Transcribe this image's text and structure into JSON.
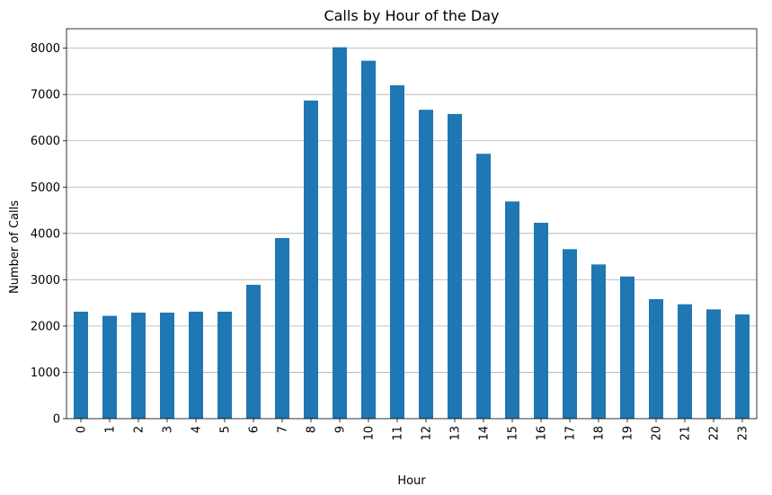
{
  "chart_data": {
    "type": "bar",
    "title": "Calls by Hour of the Day",
    "xlabel": "Hour",
    "ylabel": "Number of Calls",
    "categories": [
      "0",
      "1",
      "2",
      "3",
      "4",
      "5",
      "6",
      "7",
      "8",
      "9",
      "10",
      "11",
      "12",
      "13",
      "14",
      "15",
      "16",
      "17",
      "18",
      "19",
      "20",
      "21",
      "22",
      "23"
    ],
    "values": [
      2310,
      2220,
      2290,
      2290,
      2310,
      2310,
      2890,
      3900,
      6870,
      8020,
      7730,
      7200,
      6670,
      6580,
      5720,
      4690,
      4230,
      3660,
      3330,
      3070,
      2580,
      2470,
      2360,
      2250
    ],
    "ylim": [
      0,
      8420
    ],
    "yticks": [
      "0",
      "1000",
      "2000",
      "3000",
      "4000",
      "5000",
      "6000",
      "7000",
      "8000"
    ],
    "grid": "y-axis",
    "bar_color": "#1f77b4",
    "grid_color": "#b0b0b0"
  }
}
